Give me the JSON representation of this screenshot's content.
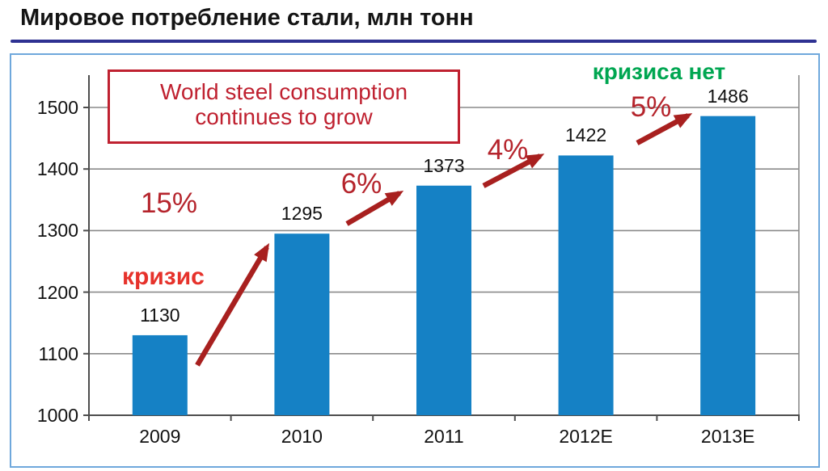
{
  "header": {
    "title": "Мировое потребление стали, млн тонн"
  },
  "chart_data": {
    "type": "bar",
    "title": "Мировое потребление стали, млн тонн",
    "categories": [
      "2009",
      "2010",
      "2011",
      "2012E",
      "2013E"
    ],
    "values": [
      1130,
      1295,
      1373,
      1422,
      1486
    ],
    "growth_percent": [
      "15%",
      "6%",
      "4%",
      "5%"
    ],
    "ylim": [
      1000,
      1550
    ],
    "yticks": [
      1000,
      1100,
      1200,
      1300,
      1400,
      1500
    ],
    "xlabel": "",
    "ylabel": "",
    "grid": true,
    "legend": "none",
    "bar_color": "#1581c5",
    "annotations": {
      "callout_box": {
        "lines": [
          "World steel consumption",
          "continues to grow"
        ],
        "color": "#bf2130"
      },
      "crisis": {
        "text": "кризис",
        "color": "#e6322b"
      },
      "no_crisis": {
        "text": "кризиса нет",
        "color": "#00a651"
      },
      "arrow_color": "#a8201f"
    }
  }
}
